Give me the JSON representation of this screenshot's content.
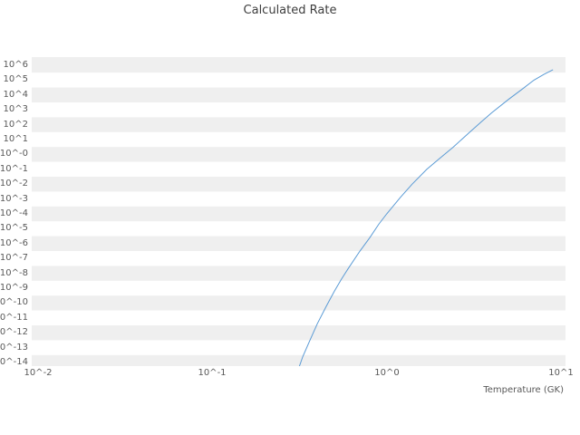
{
  "chart_data": {
    "type": "line",
    "title": "Calculated Rate",
    "xlabel": "Temperature (GK)",
    "ylabel": "",
    "x_scale": "log",
    "y_scale": "log",
    "xlim": [
      0.01,
      10
    ],
    "ylim": [
      1e-14,
      1000000.0
    ],
    "x_tick_values": [
      0.01,
      0.1,
      1,
      10
    ],
    "x_tick_labels": [
      "10^-2",
      "10^-1",
      "10^0",
      "10^1"
    ],
    "y_tick_exponents": [
      6,
      5,
      4,
      3,
      2,
      1,
      0,
      -1,
      -2,
      -3,
      -4,
      -5,
      -6,
      -7,
      -8,
      -9,
      -10,
      -11,
      -12,
      -13,
      -14
    ],
    "y_tick_labels": [
      "10^6",
      "10^5",
      "10^4",
      "10^3",
      "10^2",
      "10^1",
      "10^-0",
      "10^-1",
      "10^-2",
      "10^-3",
      "10^-4",
      "10^-5",
      "10^-6",
      "10^-7",
      "10^-8",
      "10^-9",
      "10^-10",
      "10^-11",
      "10^-12",
      "10^-13",
      "10^-14"
    ],
    "grid": "horizontal-bands",
    "legend": "none",
    "colors": {
      "line": "#5b9bd5",
      "band_gray": "#efefef",
      "band_white": "#ffffff",
      "tick_text": "#595959",
      "title_text": "#3d3d3d"
    },
    "series": [
      {
        "name": "calculated-rate",
        "x": [
          0.3,
          0.33,
          0.36,
          0.4,
          0.45,
          0.5,
          0.55,
          0.6,
          0.7,
          0.8,
          0.9,
          1.0,
          1.2,
          1.4,
          1.7,
          2.0,
          2.4,
          3.0,
          3.5,
          4.0,
          5.0,
          6.0,
          7.0,
          8.0,
          9.0
        ],
        "y": [
          1e-15,
          2.5e-14,
          2.5e-13,
          4e-12,
          6e-11,
          6e-10,
          4e-09,
          2e-08,
          3e-07,
          2.5e-06,
          2e-05,
          0.0001,
          0.0013,
          0.01,
          0.1,
          0.5,
          3,
          32.0,
          160.0,
          630.0,
          5000.0,
          25000.0,
          100000.0,
          250000.0,
          500000.0
        ]
      }
    ]
  }
}
